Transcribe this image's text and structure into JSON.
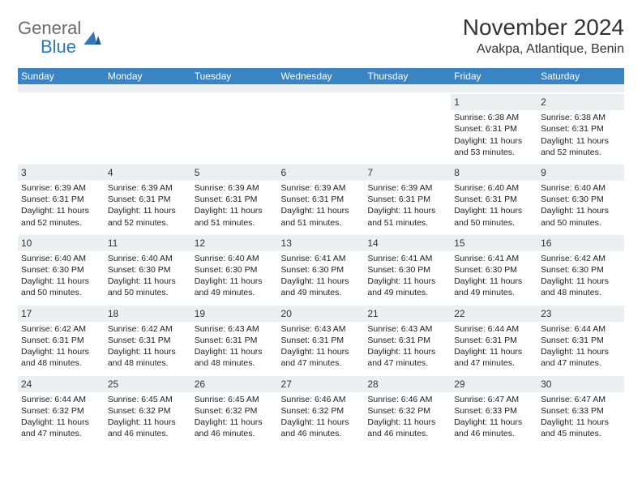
{
  "brand": {
    "part1": "General",
    "part2": "Blue"
  },
  "title": "November 2024",
  "location": "Avakpa, Atlantique, Benin",
  "colors": {
    "header_bg": "#3a84c4",
    "header_text": "#ffffff",
    "daynum_bg": "#eceff1",
    "brand_gray": "#6b6b6b",
    "brand_blue": "#2e77b8",
    "text": "#222222",
    "page_bg": "#ffffff"
  },
  "weekdays": [
    "Sunday",
    "Monday",
    "Tuesday",
    "Wednesday",
    "Thursday",
    "Friday",
    "Saturday"
  ],
  "weeks": [
    [
      null,
      null,
      null,
      null,
      null,
      {
        "n": "1",
        "sunrise": "6:38 AM",
        "sunset": "6:31 PM",
        "daylight": "11 hours and 53 minutes."
      },
      {
        "n": "2",
        "sunrise": "6:38 AM",
        "sunset": "6:31 PM",
        "daylight": "11 hours and 52 minutes."
      }
    ],
    [
      {
        "n": "3",
        "sunrise": "6:39 AM",
        "sunset": "6:31 PM",
        "daylight": "11 hours and 52 minutes."
      },
      {
        "n": "4",
        "sunrise": "6:39 AM",
        "sunset": "6:31 PM",
        "daylight": "11 hours and 52 minutes."
      },
      {
        "n": "5",
        "sunrise": "6:39 AM",
        "sunset": "6:31 PM",
        "daylight": "11 hours and 51 minutes."
      },
      {
        "n": "6",
        "sunrise": "6:39 AM",
        "sunset": "6:31 PM",
        "daylight": "11 hours and 51 minutes."
      },
      {
        "n": "7",
        "sunrise": "6:39 AM",
        "sunset": "6:31 PM",
        "daylight": "11 hours and 51 minutes."
      },
      {
        "n": "8",
        "sunrise": "6:40 AM",
        "sunset": "6:31 PM",
        "daylight": "11 hours and 50 minutes."
      },
      {
        "n": "9",
        "sunrise": "6:40 AM",
        "sunset": "6:30 PM",
        "daylight": "11 hours and 50 minutes."
      }
    ],
    [
      {
        "n": "10",
        "sunrise": "6:40 AM",
        "sunset": "6:30 PM",
        "daylight": "11 hours and 50 minutes."
      },
      {
        "n": "11",
        "sunrise": "6:40 AM",
        "sunset": "6:30 PM",
        "daylight": "11 hours and 50 minutes."
      },
      {
        "n": "12",
        "sunrise": "6:40 AM",
        "sunset": "6:30 PM",
        "daylight": "11 hours and 49 minutes."
      },
      {
        "n": "13",
        "sunrise": "6:41 AM",
        "sunset": "6:30 PM",
        "daylight": "11 hours and 49 minutes."
      },
      {
        "n": "14",
        "sunrise": "6:41 AM",
        "sunset": "6:30 PM",
        "daylight": "11 hours and 49 minutes."
      },
      {
        "n": "15",
        "sunrise": "6:41 AM",
        "sunset": "6:30 PM",
        "daylight": "11 hours and 49 minutes."
      },
      {
        "n": "16",
        "sunrise": "6:42 AM",
        "sunset": "6:30 PM",
        "daylight": "11 hours and 48 minutes."
      }
    ],
    [
      {
        "n": "17",
        "sunrise": "6:42 AM",
        "sunset": "6:31 PM",
        "daylight": "11 hours and 48 minutes."
      },
      {
        "n": "18",
        "sunrise": "6:42 AM",
        "sunset": "6:31 PM",
        "daylight": "11 hours and 48 minutes."
      },
      {
        "n": "19",
        "sunrise": "6:43 AM",
        "sunset": "6:31 PM",
        "daylight": "11 hours and 48 minutes."
      },
      {
        "n": "20",
        "sunrise": "6:43 AM",
        "sunset": "6:31 PM",
        "daylight": "11 hours and 47 minutes."
      },
      {
        "n": "21",
        "sunrise": "6:43 AM",
        "sunset": "6:31 PM",
        "daylight": "11 hours and 47 minutes."
      },
      {
        "n": "22",
        "sunrise": "6:44 AM",
        "sunset": "6:31 PM",
        "daylight": "11 hours and 47 minutes."
      },
      {
        "n": "23",
        "sunrise": "6:44 AM",
        "sunset": "6:31 PM",
        "daylight": "11 hours and 47 minutes."
      }
    ],
    [
      {
        "n": "24",
        "sunrise": "6:44 AM",
        "sunset": "6:32 PM",
        "daylight": "11 hours and 47 minutes."
      },
      {
        "n": "25",
        "sunrise": "6:45 AM",
        "sunset": "6:32 PM",
        "daylight": "11 hours and 46 minutes."
      },
      {
        "n": "26",
        "sunrise": "6:45 AM",
        "sunset": "6:32 PM",
        "daylight": "11 hours and 46 minutes."
      },
      {
        "n": "27",
        "sunrise": "6:46 AM",
        "sunset": "6:32 PM",
        "daylight": "11 hours and 46 minutes."
      },
      {
        "n": "28",
        "sunrise": "6:46 AM",
        "sunset": "6:32 PM",
        "daylight": "11 hours and 46 minutes."
      },
      {
        "n": "29",
        "sunrise": "6:47 AM",
        "sunset": "6:33 PM",
        "daylight": "11 hours and 46 minutes."
      },
      {
        "n": "30",
        "sunrise": "6:47 AM",
        "sunset": "6:33 PM",
        "daylight": "11 hours and 45 minutes."
      }
    ]
  ],
  "labels": {
    "sunrise": "Sunrise:",
    "sunset": "Sunset:",
    "daylight": "Daylight:"
  }
}
